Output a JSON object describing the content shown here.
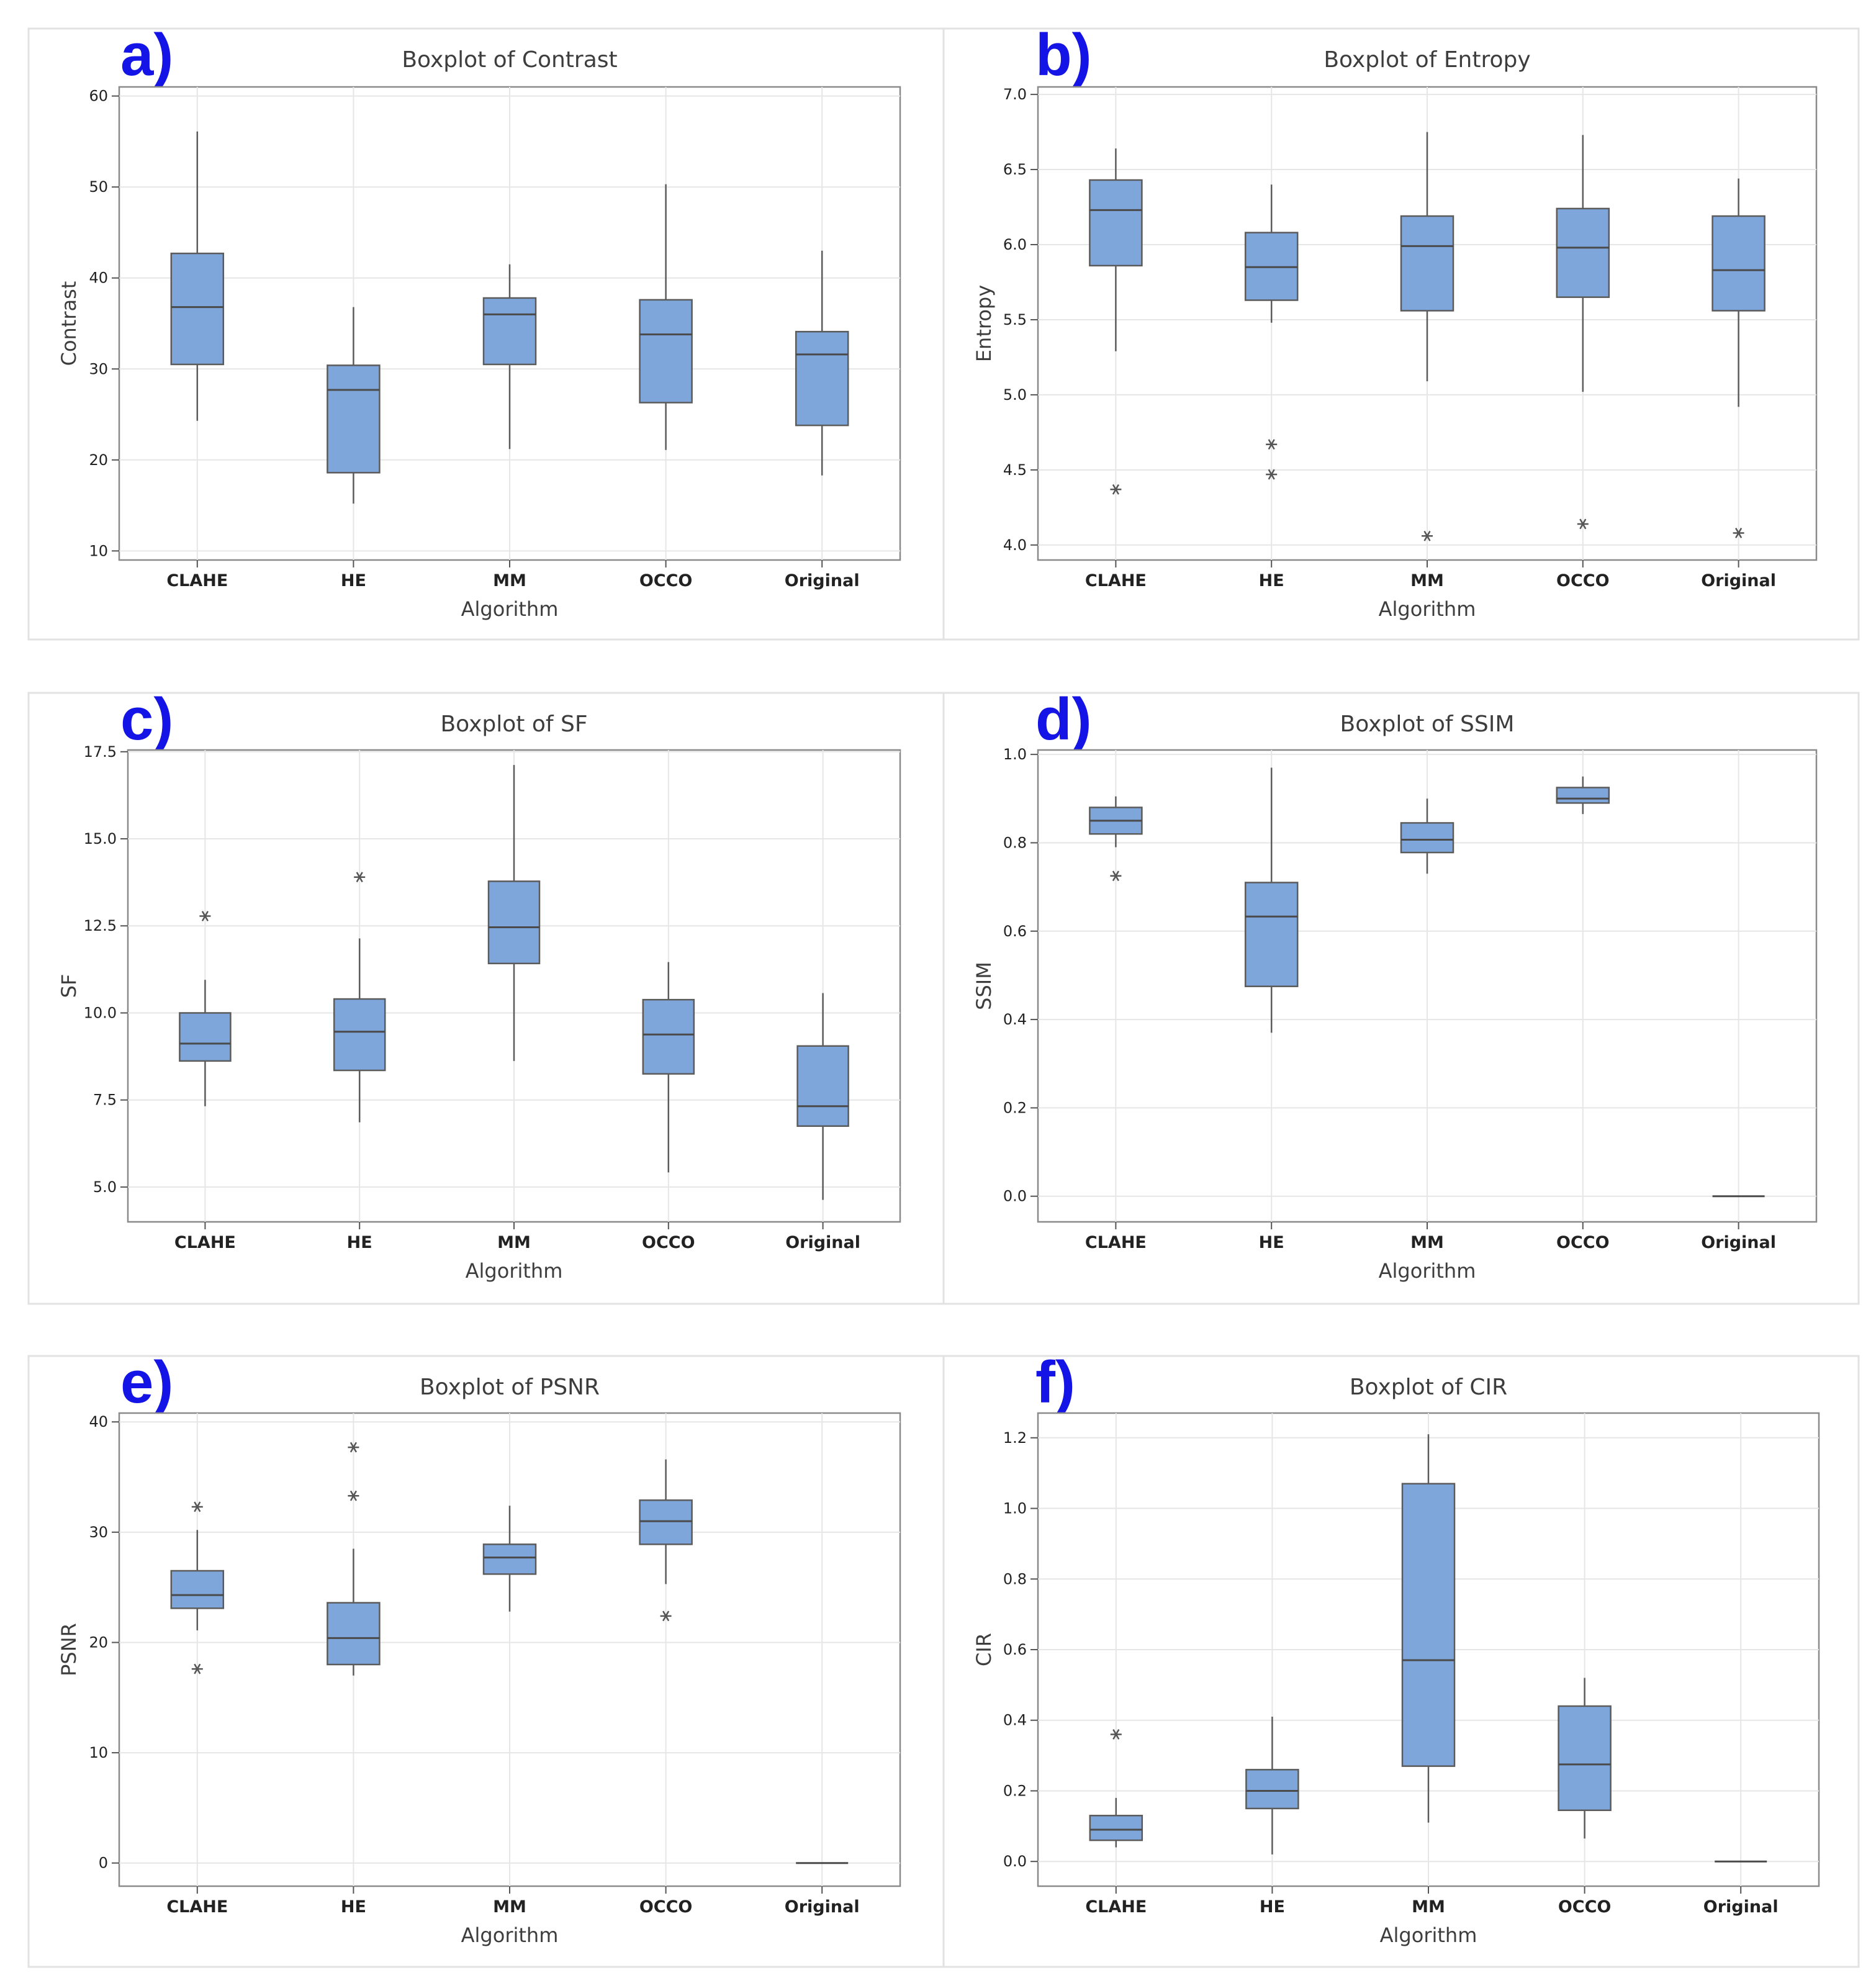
{
  "figure": {
    "colors": {
      "box_fill": "#7ea6db",
      "panel_letter": "#1414e6"
    }
  },
  "chart_data": [
    {
      "type": "boxplot",
      "panel_label": "a)",
      "title": "Boxplot of Contrast",
      "xlabel": "Algorithm",
      "ylabel": "Contrast",
      "ylim": [
        9,
        61
      ],
      "yticks": [
        10,
        20,
        30,
        40,
        50,
        60
      ],
      "categories": [
        "CLAHE",
        "HE",
        "MM",
        "OCCO",
        "Original"
      ],
      "boxes": [
        {
          "q1": 30.5,
          "median": 36.8,
          "q3": 42.7,
          "whisker_low": 24.3,
          "whisker_high": 56.1,
          "outliers": []
        },
        {
          "q1": 18.6,
          "median": 27.7,
          "q3": 30.4,
          "whisker_low": 15.2,
          "whisker_high": 36.8,
          "outliers": []
        },
        {
          "q1": 30.5,
          "median": 36.0,
          "q3": 37.8,
          "whisker_low": 21.2,
          "whisker_high": 41.5,
          "outliers": []
        },
        {
          "q1": 26.3,
          "median": 33.8,
          "q3": 37.6,
          "whisker_low": 21.1,
          "whisker_high": 50.3,
          "outliers": []
        },
        {
          "q1": 23.8,
          "median": 31.6,
          "q3": 34.1,
          "whisker_low": 18.3,
          "whisker_high": 43.0,
          "outliers": []
        }
      ]
    },
    {
      "type": "boxplot",
      "panel_label": "b)",
      "title": "Boxplot of Entropy",
      "xlabel": "Algorithm",
      "ylabel": "Entropy",
      "ylim": [
        3.9,
        7.05
      ],
      "yticks": [
        "4.0",
        "4.5",
        "5.0",
        "5.5",
        "6.0",
        "6.5",
        "7.0"
      ],
      "categories": [
        "CLAHE",
        "HE",
        "MM",
        "OCCO",
        "Original"
      ],
      "boxes": [
        {
          "q1": 5.86,
          "median": 6.23,
          "q3": 6.43,
          "whisker_low": 5.29,
          "whisker_high": 6.64,
          "outliers": [
            4.37
          ]
        },
        {
          "q1": 5.63,
          "median": 5.85,
          "q3": 6.08,
          "whisker_low": 5.48,
          "whisker_high": 6.4,
          "outliers": [
            4.47,
            4.67
          ]
        },
        {
          "q1": 5.56,
          "median": 5.99,
          "q3": 6.19,
          "whisker_low": 5.09,
          "whisker_high": 6.75,
          "outliers": [
            4.06
          ]
        },
        {
          "q1": 5.65,
          "median": 5.98,
          "q3": 6.24,
          "whisker_low": 5.02,
          "whisker_high": 6.73,
          "outliers": [
            4.14
          ]
        },
        {
          "q1": 5.56,
          "median": 5.83,
          "q3": 6.19,
          "whisker_low": 4.92,
          "whisker_high": 6.44,
          "outliers": [
            4.08
          ]
        }
      ]
    },
    {
      "type": "boxplot",
      "panel_label": "c)",
      "title": "Boxplot of SF",
      "xlabel": "Algorithm",
      "ylabel": "SF",
      "ylim": [
        4.0,
        17.55
      ],
      "yticks": [
        "5.0",
        "7.5",
        "10.0",
        "12.5",
        "15.0",
        "17.5"
      ],
      "categories": [
        "CLAHE",
        "HE",
        "MM",
        "OCCO",
        "Original"
      ],
      "boxes": [
        {
          "q1": 8.62,
          "median": 9.12,
          "q3": 10.0,
          "whisker_low": 7.32,
          "whisker_high": 10.95,
          "outliers": [
            12.78
          ]
        },
        {
          "q1": 8.35,
          "median": 9.46,
          "q3": 10.4,
          "whisker_low": 6.86,
          "whisker_high": 12.14,
          "outliers": [
            13.9
          ]
        },
        {
          "q1": 11.42,
          "median": 12.46,
          "q3": 13.78,
          "whisker_low": 8.62,
          "whisker_high": 17.12,
          "outliers": []
        },
        {
          "q1": 8.25,
          "median": 9.38,
          "q3": 10.38,
          "whisker_low": 5.42,
          "whisker_high": 11.46,
          "outliers": []
        },
        {
          "q1": 6.75,
          "median": 7.32,
          "q3": 9.05,
          "whisker_low": 4.63,
          "whisker_high": 10.57,
          "outliers": []
        }
      ]
    },
    {
      "type": "boxplot",
      "panel_label": "d)",
      "title": "Boxplot of SSIM",
      "xlabel": "Algorithm",
      "ylabel": "SSIM",
      "ylim": [
        -0.058,
        1.01
      ],
      "yticks": [
        "0.0",
        "0.2",
        "0.4",
        "0.6",
        "0.8",
        "1.0"
      ],
      "categories": [
        "CLAHE",
        "HE",
        "MM",
        "OCCO",
        "Original"
      ],
      "boxes": [
        {
          "q1": 0.82,
          "median": 0.85,
          "q3": 0.88,
          "whisker_low": 0.79,
          "whisker_high": 0.905,
          "outliers": [
            0.725
          ]
        },
        {
          "q1": 0.475,
          "median": 0.633,
          "q3": 0.71,
          "whisker_low": 0.37,
          "whisker_high": 0.97,
          "outliers": []
        },
        {
          "q1": 0.778,
          "median": 0.807,
          "q3": 0.845,
          "whisker_low": 0.73,
          "whisker_high": 0.9,
          "outliers": []
        },
        {
          "q1": 0.89,
          "median": 0.9,
          "q3": 0.925,
          "whisker_low": 0.865,
          "whisker_high": 0.95,
          "outliers": []
        },
        {
          "q1": 0.0,
          "median": 0.0,
          "q3": 0.0,
          "whisker_low": 0.0,
          "whisker_high": 0.0,
          "outliers": []
        }
      ]
    },
    {
      "type": "boxplot",
      "panel_label": "e)",
      "title": "Boxplot of PSNR",
      "xlabel": "Algorithm",
      "ylabel": "PSNR",
      "ylim": [
        -2.1,
        40.8
      ],
      "yticks": [
        0,
        10,
        20,
        30,
        40
      ],
      "categories": [
        "CLAHE",
        "HE",
        "MM",
        "OCCO",
        "Original"
      ],
      "boxes": [
        {
          "q1": 23.1,
          "median": 24.3,
          "q3": 26.5,
          "whisker_low": 21.1,
          "whisker_high": 30.2,
          "outliers": [
            17.6,
            32.3
          ]
        },
        {
          "q1": 18.0,
          "median": 20.4,
          "q3": 23.6,
          "whisker_low": 17.0,
          "whisker_high": 28.5,
          "outliers": [
            33.3,
            37.7
          ]
        },
        {
          "q1": 26.2,
          "median": 27.7,
          "q3": 28.9,
          "whisker_low": 22.8,
          "whisker_high": 32.4,
          "outliers": []
        },
        {
          "q1": 28.9,
          "median": 31.0,
          "q3": 32.9,
          "whisker_low": 25.3,
          "whisker_high": 36.6,
          "outliers": [
            22.4
          ]
        },
        {
          "q1": 0.0,
          "median": 0.0,
          "q3": 0.0,
          "whisker_low": 0.0,
          "whisker_high": 0.0,
          "outliers": []
        }
      ]
    },
    {
      "type": "boxplot",
      "panel_label": "f)",
      "title": "Boxplot of CIR",
      "xlabel": "Algorithm",
      "ylabel": "CIR",
      "ylim": [
        -0.07,
        1.27
      ],
      "yticks": [
        "0.0",
        "0.2",
        "0.4",
        "0.6",
        "0.8",
        "1.0",
        "1.2"
      ],
      "categories": [
        "CLAHE",
        "HE",
        "MM",
        "OCCO",
        "Original"
      ],
      "boxes": [
        {
          "q1": 0.06,
          "median": 0.09,
          "q3": 0.13,
          "whisker_low": 0.04,
          "whisker_high": 0.18,
          "outliers": [
            0.36
          ]
        },
        {
          "q1": 0.15,
          "median": 0.2,
          "q3": 0.26,
          "whisker_low": 0.02,
          "whisker_high": 0.41,
          "outliers": []
        },
        {
          "q1": 0.27,
          "median": 0.57,
          "q3": 1.07,
          "whisker_low": 0.11,
          "whisker_high": 1.21,
          "outliers": []
        },
        {
          "q1": 0.145,
          "median": 0.275,
          "q3": 0.44,
          "whisker_low": 0.065,
          "whisker_high": 0.52,
          "outliers": []
        },
        {
          "q1": 0.0,
          "median": 0.0,
          "q3": 0.0,
          "whisker_low": 0.0,
          "whisker_high": 0.0,
          "outliers": []
        }
      ]
    }
  ]
}
